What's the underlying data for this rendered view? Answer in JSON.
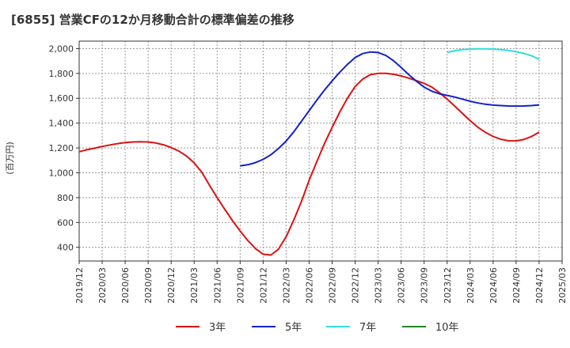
{
  "chart_data": {
    "type": "line",
    "title": "[6855]  営業CFの12か月移動合計の標準偏差の推移",
    "ylabel": "(百万円)",
    "xlabel": "",
    "ylim": [
      290,
      2060
    ],
    "y_ticks": [
      400,
      600,
      800,
      1000,
      1200,
      1400,
      1600,
      1800,
      2000
    ],
    "y_tick_labels": [
      "400",
      "600",
      "800",
      "1,000",
      "1,200",
      "1,400",
      "1,600",
      "1,800",
      "2,000"
    ],
    "x_ticks": [
      "2019/12",
      "2020/03",
      "2020/06",
      "2020/09",
      "2020/12",
      "2021/03",
      "2021/06",
      "2021/09",
      "2021/12",
      "2022/03",
      "2022/06",
      "2022/09",
      "2022/12",
      "2023/03",
      "2023/06",
      "2023/09",
      "2023/12",
      "2024/03",
      "2024/06",
      "2024/09",
      "2024/12",
      "2025/03"
    ],
    "grid": true,
    "legend_position": "bottom",
    "series": [
      {
        "name": "3年",
        "color": "#dd1111",
        "points": [
          [
            "2019/12",
            1170
          ],
          [
            "2020/01",
            1185
          ],
          [
            "2020/02",
            1198
          ],
          [
            "2020/03",
            1212
          ],
          [
            "2020/04",
            1224
          ],
          [
            "2020/05",
            1235
          ],
          [
            "2020/06",
            1243
          ],
          [
            "2020/07",
            1248
          ],
          [
            "2020/08",
            1250
          ],
          [
            "2020/09",
            1248
          ],
          [
            "2020/10",
            1240
          ],
          [
            "2020/11",
            1225
          ],
          [
            "2020/12",
            1203
          ],
          [
            "2021/01",
            1175
          ],
          [
            "2021/02",
            1135
          ],
          [
            "2021/03",
            1080
          ],
          [
            "2021/04",
            1005
          ],
          [
            "2021/05",
            900
          ],
          [
            "2021/06",
            800
          ],
          [
            "2021/07",
            705
          ],
          [
            "2021/08",
            615
          ],
          [
            "2021/09",
            532
          ],
          [
            "2021/10",
            455
          ],
          [
            "2021/11",
            390
          ],
          [
            "2021/12",
            345
          ],
          [
            "2022/01",
            338
          ],
          [
            "2022/02",
            385
          ],
          [
            "2022/03",
            485
          ],
          [
            "2022/04",
            620
          ],
          [
            "2022/05",
            770
          ],
          [
            "2022/06",
            940
          ],
          [
            "2022/07",
            1090
          ],
          [
            "2022/08",
            1235
          ],
          [
            "2022/09",
            1365
          ],
          [
            "2022/10",
            1490
          ],
          [
            "2022/11",
            1600
          ],
          [
            "2022/12",
            1695
          ],
          [
            "2023/01",
            1755
          ],
          [
            "2023/02",
            1790
          ],
          [
            "2023/03",
            1800
          ],
          [
            "2023/04",
            1800
          ],
          [
            "2023/05",
            1793
          ],
          [
            "2023/06",
            1780
          ],
          [
            "2023/07",
            1762
          ],
          [
            "2023/08",
            1742
          ],
          [
            "2023/09",
            1720
          ],
          [
            "2023/10",
            1690
          ],
          [
            "2023/11",
            1645
          ],
          [
            "2023/12",
            1593
          ],
          [
            "2024/01",
            1537
          ],
          [
            "2024/02",
            1478
          ],
          [
            "2024/03",
            1420
          ],
          [
            "2024/04",
            1367
          ],
          [
            "2024/05",
            1325
          ],
          [
            "2024/06",
            1293
          ],
          [
            "2024/07",
            1270
          ],
          [
            "2024/08",
            1258
          ],
          [
            "2024/09",
            1257
          ],
          [
            "2024/10",
            1268
          ],
          [
            "2024/11",
            1292
          ],
          [
            "2024/12",
            1327
          ]
        ]
      },
      {
        "name": "5年",
        "color": "#1122cc",
        "points": [
          [
            "2021/09",
            1055
          ],
          [
            "2021/10",
            1065
          ],
          [
            "2021/11",
            1082
          ],
          [
            "2021/12",
            1108
          ],
          [
            "2022/01",
            1145
          ],
          [
            "2022/02",
            1195
          ],
          [
            "2022/03",
            1255
          ],
          [
            "2022/04",
            1330
          ],
          [
            "2022/05",
            1415
          ],
          [
            "2022/06",
            1500
          ],
          [
            "2022/07",
            1585
          ],
          [
            "2022/08",
            1665
          ],
          [
            "2022/09",
            1740
          ],
          [
            "2022/10",
            1810
          ],
          [
            "2022/11",
            1873
          ],
          [
            "2022/12",
            1928
          ],
          [
            "2023/01",
            1960
          ],
          [
            "2023/02",
            1973
          ],
          [
            "2023/03",
            1968
          ],
          [
            "2023/04",
            1945
          ],
          [
            "2023/05",
            1903
          ],
          [
            "2023/06",
            1848
          ],
          [
            "2023/07",
            1790
          ],
          [
            "2023/08",
            1737
          ],
          [
            "2023/09",
            1690
          ],
          [
            "2023/10",
            1657
          ],
          [
            "2023/11",
            1636
          ],
          [
            "2023/12",
            1623
          ],
          [
            "2024/01",
            1610
          ],
          [
            "2024/02",
            1593
          ],
          [
            "2024/03",
            1576
          ],
          [
            "2024/04",
            1562
          ],
          [
            "2024/05",
            1552
          ],
          [
            "2024/06",
            1545
          ],
          [
            "2024/07",
            1541
          ],
          [
            "2024/08",
            1538
          ],
          [
            "2024/09",
            1537
          ],
          [
            "2024/10",
            1538
          ],
          [
            "2024/11",
            1541
          ],
          [
            "2024/12",
            1547
          ]
        ]
      },
      {
        "name": "7年",
        "color": "#33dddd",
        "points": [
          [
            "2023/12",
            1970
          ],
          [
            "2024/01",
            1983
          ],
          [
            "2024/02",
            1992
          ],
          [
            "2024/03",
            1996
          ],
          [
            "2024/04",
            1998
          ],
          [
            "2024/05",
            1998
          ],
          [
            "2024/06",
            1996
          ],
          [
            "2024/07",
            1992
          ],
          [
            "2024/08",
            1985
          ],
          [
            "2024/09",
            1975
          ],
          [
            "2024/10",
            1962
          ],
          [
            "2024/11",
            1942
          ],
          [
            "2024/12",
            1915
          ]
        ]
      },
      {
        "name": "10年",
        "color": "#228822",
        "points": []
      }
    ]
  }
}
